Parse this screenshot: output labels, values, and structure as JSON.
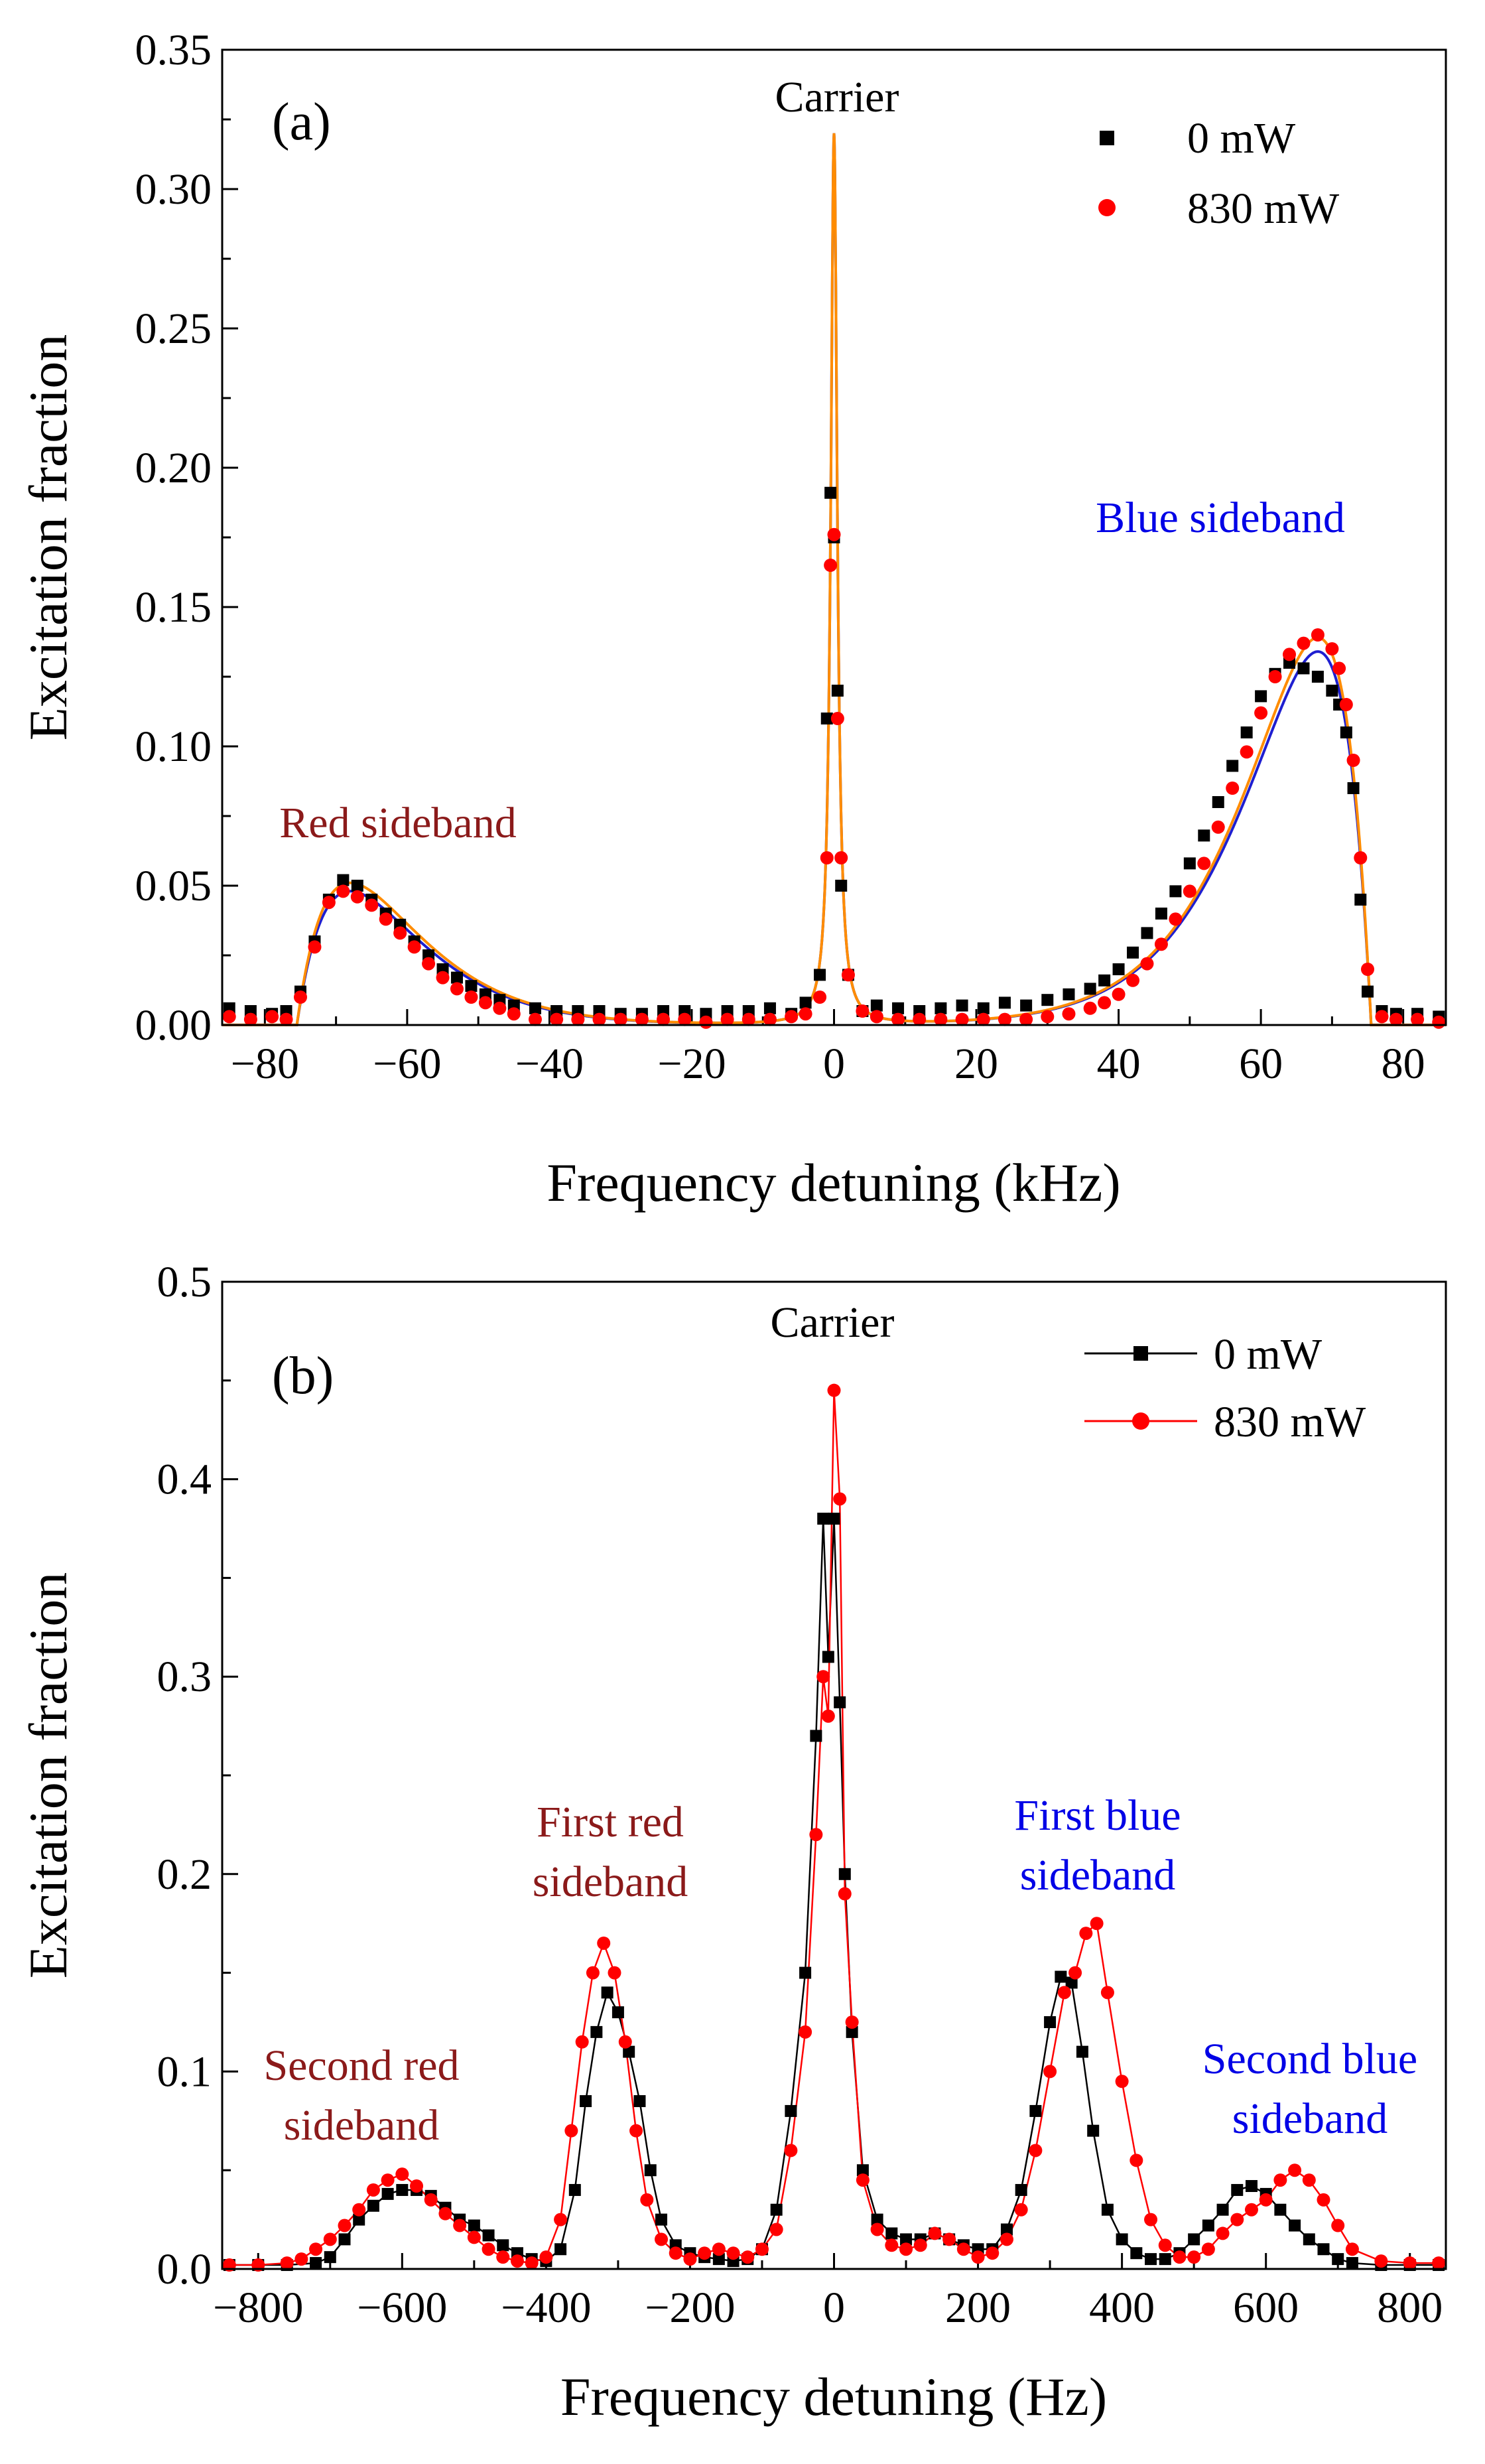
{
  "chart_data": [
    {
      "type": "scatter",
      "panel_label": "(a)",
      "xlabel": "Frequency detuning (kHz)",
      "ylabel": "Excitation fraction",
      "xlim": [
        -86,
        86
      ],
      "ylim": [
        0,
        0.35
      ],
      "xticks": [
        -80,
        -60,
        -40,
        -20,
        0,
        20,
        40,
        60,
        80
      ],
      "xtick_labels": [
        "−80",
        "−60",
        "−40",
        "−20",
        "0",
        "20",
        "40",
        "60",
        "80"
      ],
      "yticks": [
        0,
        0.05,
        0.1,
        0.15,
        0.2,
        0.25,
        0.3,
        0.35
      ],
      "ytick_labels": [
        "0.00",
        "0.05",
        "0.10",
        "0.15",
        "0.20",
        "0.25",
        "0.30",
        "0.35"
      ],
      "legend": [
        "0 mW",
        "830 mW"
      ],
      "legend_position": "top-right",
      "annotations": [
        "Carrier",
        "Red sideband",
        "Blue sideband"
      ],
      "colors": {
        "s0": "#000000",
        "s830": "#ff0000",
        "fit_blue": "#1f1fd0",
        "fit_orange": "#ff8c00",
        "red_label": "#8b1a1a",
        "blue_label": "#0000e6",
        "black_label": "#000000"
      },
      "series": [
        {
          "name": "0 mW",
          "marker": "square",
          "x": [
            -85,
            -82,
            -79,
            -77,
            -75,
            -73,
            -71,
            -69,
            -67,
            -65,
            -63,
            -61,
            -59,
            -57,
            -55,
            -53,
            -51,
            -49,
            -47,
            -45,
            -42,
            -39,
            -36,
            -33,
            -30,
            -27,
            -24,
            -21,
            -18,
            -15,
            -12,
            -9,
            -6,
            -4,
            -2,
            -1,
            -0.5,
            0,
            0.5,
            1,
            2,
            4,
            6,
            9,
            12,
            15,
            18,
            21,
            24,
            27,
            30,
            33,
            36,
            38,
            40,
            42,
            44,
            46,
            48,
            50,
            52,
            54,
            56,
            58,
            60,
            62,
            64,
            66,
            68,
            70,
            71,
            72,
            73,
            74,
            75,
            77,
            79,
            82,
            85
          ],
          "y": [
            0.006,
            0.005,
            0.004,
            0.005,
            0.012,
            0.03,
            0.045,
            0.052,
            0.05,
            0.045,
            0.04,
            0.036,
            0.03,
            0.025,
            0.02,
            0.017,
            0.014,
            0.011,
            0.009,
            0.007,
            0.006,
            0.005,
            0.005,
            0.005,
            0.004,
            0.004,
            0.005,
            0.005,
            0.004,
            0.005,
            0.005,
            0.006,
            0.004,
            0.008,
            0.018,
            0.11,
            0.191,
            0.175,
            0.12,
            0.05,
            0.018,
            0.005,
            0.007,
            0.006,
            0.005,
            0.006,
            0.007,
            0.006,
            0.008,
            0.007,
            0.009,
            0.011,
            0.013,
            0.016,
            0.02,
            0.026,
            0.033,
            0.04,
            0.048,
            0.058,
            0.068,
            0.08,
            0.093,
            0.105,
            0.118,
            0.126,
            0.13,
            0.128,
            0.125,
            0.12,
            0.115,
            0.105,
            0.085,
            0.045,
            0.012,
            0.005,
            0.004,
            0.004,
            0.003
          ]
        },
        {
          "name": "830 mW",
          "marker": "circle",
          "x": [
            -85,
            -82,
            -79,
            -77,
            -75,
            -73,
            -71,
            -69,
            -67,
            -65,
            -63,
            -61,
            -59,
            -57,
            -55,
            -53,
            -51,
            -49,
            -47,
            -45,
            -42,
            -39,
            -36,
            -33,
            -30,
            -27,
            -24,
            -21,
            -18,
            -15,
            -12,
            -9,
            -6,
            -4,
            -2,
            -1,
            -0.5,
            0,
            0.5,
            1,
            2,
            4,
            6,
            9,
            12,
            15,
            18,
            21,
            24,
            27,
            30,
            33,
            36,
            38,
            40,
            42,
            44,
            46,
            48,
            50,
            52,
            54,
            56,
            58,
            60,
            62,
            64,
            66,
            68,
            70,
            71,
            72,
            73,
            74,
            75,
            77,
            79,
            82,
            85
          ],
          "y": [
            0.003,
            0.002,
            0.003,
            0.002,
            0.01,
            0.028,
            0.044,
            0.048,
            0.046,
            0.043,
            0.038,
            0.033,
            0.028,
            0.022,
            0.017,
            0.013,
            0.01,
            0.008,
            0.006,
            0.004,
            0.002,
            0.002,
            0.002,
            0.002,
            0.002,
            0.002,
            0.002,
            0.002,
            0.001,
            0.002,
            0.002,
            0.002,
            0.003,
            0.004,
            0.01,
            0.06,
            0.165,
            0.176,
            0.11,
            0.06,
            0.018,
            0.005,
            0.003,
            0.002,
            0.002,
            0.002,
            0.002,
            0.002,
            0.002,
            0.002,
            0.003,
            0.004,
            0.006,
            0.008,
            0.011,
            0.016,
            0.022,
            0.029,
            0.038,
            0.048,
            0.058,
            0.071,
            0.085,
            0.098,
            0.112,
            0.125,
            0.133,
            0.137,
            0.14,
            0.135,
            0.128,
            0.115,
            0.095,
            0.06,
            0.02,
            0.003,
            0.002,
            0.002,
            0.001
          ]
        }
      ],
      "fits": [
        {
          "name": "fit 0 mW",
          "color": "blue",
          "sideband_amplitude": 0.134,
          "red_amplitude": 0.048,
          "carrier_peak": 0.32
        },
        {
          "name": "fit 830 mW",
          "color": "orange",
          "sideband_amplitude": 0.139,
          "red_amplitude": 0.051,
          "carrier_peak": 0.32
        }
      ]
    },
    {
      "type": "line",
      "panel_label": "(b)",
      "xlabel": "Frequency detuning (Hz)",
      "ylabel": "Excitation fraction",
      "xlim": [
        -850,
        850
      ],
      "ylim": [
        0,
        0.5
      ],
      "xticks": [
        -800,
        -600,
        -400,
        -200,
        0,
        200,
        400,
        600,
        800
      ],
      "xtick_labels": [
        "−800",
        "−600",
        "−400",
        "−200",
        "0",
        "200",
        "400",
        "600",
        "800"
      ],
      "yticks": [
        0,
        0.1,
        0.2,
        0.3,
        0.4,
        0.5
      ],
      "ytick_labels": [
        "0.0",
        "0.1",
        "0.2",
        "0.3",
        "0.4",
        "0.5"
      ],
      "legend": [
        "0 mW",
        "830 mW"
      ],
      "legend_position": "top-right",
      "annotations": {
        "carrier": "Carrier",
        "first_red": [
          "First red",
          "sideband"
        ],
        "first_blue": [
          "First blue",
          "sideband"
        ],
        "second_red": [
          "Second red",
          "sideband"
        ],
        "second_blue": [
          "Second blue",
          "sideband"
        ]
      },
      "series": [
        {
          "name": "0 mW",
          "marker": "square",
          "x": [
            -840,
            -800,
            -760,
            -720,
            -700,
            -680,
            -660,
            -640,
            -620,
            -600,
            -580,
            -560,
            -540,
            -520,
            -500,
            -480,
            -460,
            -440,
            -420,
            -400,
            -380,
            -360,
            -345,
            -330,
            -315,
            -300,
            -285,
            -270,
            -255,
            -240,
            -220,
            -200,
            -180,
            -160,
            -140,
            -120,
            -100,
            -80,
            -60,
            -40,
            -25,
            -15,
            -8,
            0,
            8,
            15,
            25,
            40,
            60,
            80,
            100,
            120,
            140,
            160,
            180,
            200,
            220,
            240,
            260,
            280,
            300,
            315,
            330,
            345,
            360,
            380,
            400,
            420,
            440,
            460,
            480,
            500,
            520,
            540,
            560,
            580,
            600,
            620,
            640,
            660,
            680,
            700,
            720,
            760,
            800,
            840
          ],
          "y": [
            0.002,
            0.002,
            0.002,
            0.003,
            0.006,
            0.015,
            0.025,
            0.032,
            0.038,
            0.04,
            0.04,
            0.037,
            0.031,
            0.025,
            0.022,
            0.017,
            0.012,
            0.008,
            0.005,
            0.004,
            0.01,
            0.04,
            0.085,
            0.12,
            0.14,
            0.13,
            0.11,
            0.085,
            0.05,
            0.025,
            0.012,
            0.008,
            0.006,
            0.005,
            0.004,
            0.005,
            0.01,
            0.03,
            0.08,
            0.15,
            0.27,
            0.38,
            0.31,
            0.38,
            0.287,
            0.2,
            0.12,
            0.05,
            0.025,
            0.018,
            0.015,
            0.015,
            0.018,
            0.015,
            0.012,
            0.01,
            0.01,
            0.02,
            0.04,
            0.08,
            0.125,
            0.148,
            0.145,
            0.11,
            0.07,
            0.03,
            0.015,
            0.008,
            0.005,
            0.005,
            0.008,
            0.015,
            0.022,
            0.03,
            0.04,
            0.042,
            0.038,
            0.03,
            0.022,
            0.015,
            0.01,
            0.005,
            0.003,
            0.002,
            0.002,
            0.002
          ]
        },
        {
          "name": "830 mW",
          "marker": "circle",
          "x": [
            -840,
            -800,
            -760,
            -740,
            -720,
            -700,
            -680,
            -660,
            -640,
            -620,
            -600,
            -580,
            -560,
            -540,
            -520,
            -500,
            -480,
            -460,
            -440,
            -420,
            -400,
            -380,
            -365,
            -350,
            -335,
            -320,
            -305,
            -290,
            -275,
            -260,
            -240,
            -220,
            -200,
            -180,
            -160,
            -140,
            -120,
            -100,
            -80,
            -60,
            -40,
            -25,
            -15,
            -8,
            0,
            8,
            15,
            25,
            40,
            60,
            80,
            100,
            120,
            140,
            160,
            180,
            200,
            220,
            240,
            260,
            280,
            300,
            320,
            335,
            350,
            365,
            380,
            400,
            420,
            440,
            460,
            480,
            500,
            520,
            540,
            560,
            580,
            600,
            620,
            640,
            660,
            680,
            700,
            720,
            760,
            800,
            840
          ],
          "y": [
            0.002,
            0.002,
            0.003,
            0.005,
            0.01,
            0.015,
            0.022,
            0.03,
            0.04,
            0.045,
            0.048,
            0.042,
            0.035,
            0.028,
            0.022,
            0.016,
            0.01,
            0.006,
            0.004,
            0.003,
            0.006,
            0.025,
            0.07,
            0.115,
            0.15,
            0.165,
            0.15,
            0.115,
            0.07,
            0.035,
            0.015,
            0.008,
            0.005,
            0.008,
            0.01,
            0.008,
            0.006,
            0.01,
            0.02,
            0.06,
            0.12,
            0.22,
            0.3,
            0.28,
            0.445,
            0.39,
            0.19,
            0.125,
            0.045,
            0.02,
            0.012,
            0.01,
            0.012,
            0.018,
            0.015,
            0.01,
            0.006,
            0.008,
            0.015,
            0.03,
            0.06,
            0.1,
            0.14,
            0.15,
            0.17,
            0.175,
            0.14,
            0.095,
            0.055,
            0.025,
            0.012,
            0.006,
            0.006,
            0.01,
            0.018,
            0.025,
            0.03,
            0.035,
            0.045,
            0.05,
            0.045,
            0.035,
            0.022,
            0.01,
            0.004,
            0.003,
            0.003
          ]
        }
      ]
    }
  ]
}
